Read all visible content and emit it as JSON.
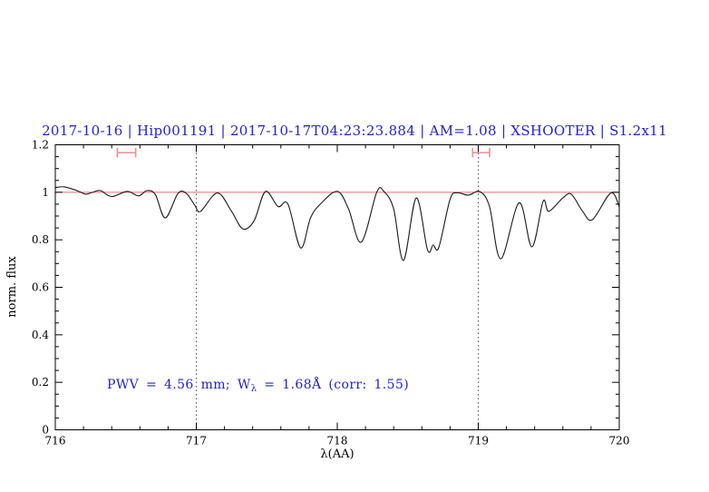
{
  "title": {
    "text": "2017-10-16 | Hip001191 | 2017-10-17T04:23:23.884 | AM=1.08 | XSHOOTER | S1.2x11",
    "color": "#2222cc"
  },
  "header_fields": {
    "night": "2017-10-16",
    "target": "Hip001191",
    "obs_datetime": "2017-10-17T04:23:23.884",
    "airmass": "1.08",
    "instrument": "XSHOOTER",
    "slit": "S1.2x11"
  },
  "annotation": {
    "prefix": "PWV = 4.56 mm; W",
    "subscript": "λ",
    "suffix": " = 1.68Å (corr: 1.55)",
    "color": "#2222cc"
  },
  "measurements": {
    "pwv_mm": "4.56",
    "w_lambda_angstrom": "1.68",
    "corr": "1.55"
  },
  "chart_data": {
    "type": "line",
    "title": "2017-10-16 | Hip001191 | 2017-10-17T04:23:23.884 | AM=1.08 | XSHOOTER | S1.2x11",
    "xlabel": "λ(AA)",
    "ylabel": "norm. flux",
    "xlim": [
      716,
      720
    ],
    "ylim": [
      0,
      1.2
    ],
    "grid": "off",
    "legend": "none",
    "x_major_ticks": [
      716,
      717,
      718,
      719,
      720
    ],
    "x_tick_labels": [
      "716",
      "717",
      "718",
      "719",
      "720"
    ],
    "x_minor_step": 0.2,
    "y_major_ticks": [
      0,
      0.2,
      0.4,
      0.6,
      0.8,
      1,
      1.2
    ],
    "y_tick_labels": [
      "0",
      "0.2",
      "0.4",
      "0.6",
      "0.8",
      "1",
      "1.2"
    ],
    "y_minor_step": 0.05,
    "continuum_line": {
      "y": 1.0,
      "color": "#f08080"
    },
    "dotted_vlines": {
      "x": [
        717,
        719
      ],
      "color": "#555555"
    },
    "band_markers": [
      {
        "x_center": 716.505,
        "x_halfwidth": 0.065,
        "y": 1.167,
        "cap_halfheight": 0.02,
        "color": "#ef8e8e"
      },
      {
        "x_center": 719.02,
        "x_halfwidth": 0.06,
        "y": 1.167,
        "cap_halfheight": 0.02,
        "color": "#ef8e8e"
      }
    ],
    "series": [
      {
        "name": "normalized spectrum",
        "color": "#1a1a1a",
        "x": [
          716.0,
          716.06,
          716.13,
          716.18,
          716.22,
          716.27,
          716.32,
          716.4,
          716.51,
          716.59,
          716.65,
          716.71,
          716.78,
          716.87,
          716.93,
          716.99,
          717.03,
          717.15,
          717.25,
          717.33,
          717.41,
          717.49,
          717.58,
          717.65,
          717.74,
          717.81,
          717.88,
          718.0,
          718.08,
          718.17,
          718.28,
          718.33,
          718.4,
          718.47,
          718.56,
          718.64,
          718.68,
          718.72,
          718.8,
          718.85,
          718.93,
          719.01,
          719.08,
          719.16,
          719.29,
          719.38,
          719.46,
          719.5,
          719.6,
          719.66,
          719.74,
          719.81,
          719.94,
          720.0
        ],
        "y": [
          1.02,
          1.023,
          1.012,
          1.0,
          0.992,
          1.001,
          1.007,
          0.982,
          1.004,
          0.985,
          1.007,
          0.99,
          0.892,
          0.995,
          0.995,
          0.945,
          0.92,
          0.997,
          0.92,
          0.846,
          0.88,
          1.003,
          0.94,
          0.95,
          0.766,
          0.892,
          0.95,
          1.004,
          0.93,
          0.79,
          1.0,
          1.004,
          0.93,
          0.713,
          0.976,
          0.758,
          0.778,
          0.768,
          0.97,
          0.998,
          0.988,
          1.003,
          0.94,
          0.72,
          0.956,
          0.77,
          0.962,
          0.92,
          0.976,
          0.992,
          0.92,
          0.885,
          0.997,
          0.94
        ]
      }
    ]
  },
  "colors": {
    "background": "#ffffff",
    "axis": "#000000",
    "curve": "#1a1a1a",
    "continuum": "#f08080",
    "marker": "#ef8e8e",
    "dotted_line": "#555555",
    "text_blue": "#2222cc"
  }
}
